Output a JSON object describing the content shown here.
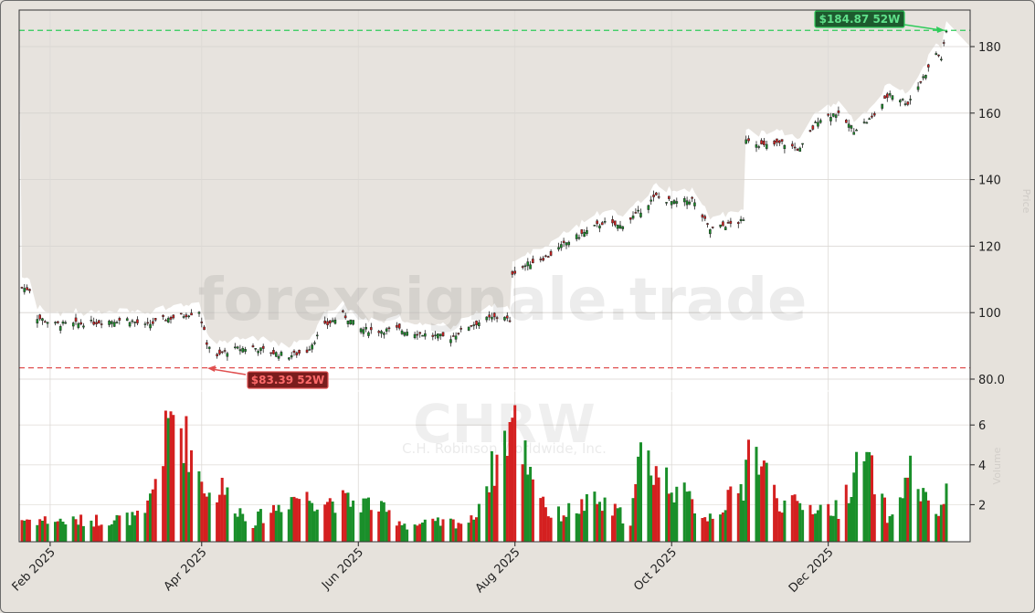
{
  "watermark": {
    "site": "forexsignale.trade",
    "ticker": "CHRW",
    "company": "C.H. Robinson Worldwide, Inc."
  },
  "axes": {
    "price_label": "Price",
    "volume_label": "Volume"
  },
  "annotations": {
    "high_label": "$184.87 52W",
    "low_label": "$83.39 52W"
  },
  "colors": {
    "up": "#1a8f2a",
    "down": "#d42020",
    "high_line": "#2ecc5a",
    "low_line": "#e05050",
    "background": "#e6e2dc",
    "panel": "#ffffff",
    "shade": "#e6e2dc"
  },
  "chart_data": [
    {
      "type": "candlestick",
      "title": "",
      "xlabel": "",
      "ylabel": "Price",
      "ylim": [
        75,
        191
      ],
      "yticks": [
        80,
        100,
        120,
        140,
        160,
        180
      ],
      "ytick_labels": [
        "80.0",
        "100",
        "120",
        "140",
        "160",
        "180"
      ],
      "date_ticks": [
        "Feb 2025",
        "Apr 2025",
        "Jun 2025",
        "Aug 2025",
        "Oct 2025",
        "Dec 2025"
      ],
      "date_range": [
        "2025-01-21",
        "2026-01-16"
      ],
      "grid": true,
      "high_52w": 184.87,
      "low_52w": 83.39,
      "close_path": [
        [
          "2025-01-21",
          107.5
        ],
        [
          "2025-01-24",
          107.0
        ],
        [
          "2025-01-27",
          98.5
        ],
        [
          "2025-02-03",
          96.5
        ],
        [
          "2025-02-10",
          96.5
        ],
        [
          "2025-02-17",
          97.0
        ],
        [
          "2025-02-24",
          97.5
        ],
        [
          "2025-03-03",
          98.0
        ],
        [
          "2025-03-10",
          96.0
        ],
        [
          "2025-03-17",
          98.0
        ],
        [
          "2025-03-24",
          99.0
        ],
        [
          "2025-03-31",
          100.5
        ],
        [
          "2025-04-03",
          91.0
        ],
        [
          "2025-04-07",
          86.5
        ],
        [
          "2025-04-09",
          88.0
        ],
        [
          "2025-04-14",
          89.0
        ],
        [
          "2025-04-21",
          89.5
        ],
        [
          "2025-04-28",
          88.0
        ],
        [
          "2025-05-05",
          87.0
        ],
        [
          "2025-05-12",
          88.5
        ],
        [
          "2025-05-19",
          96.0
        ],
        [
          "2025-05-26",
          99.5
        ],
        [
          "2025-06-02",
          95.0
        ],
        [
          "2025-06-09",
          94.5
        ],
        [
          "2025-06-16",
          95.0
        ],
        [
          "2025-06-23",
          94.0
        ],
        [
          "2025-06-30",
          93.0
        ],
        [
          "2025-07-07",
          92.5
        ],
        [
          "2025-07-14",
          96.0
        ],
        [
          "2025-07-21",
          98.0
        ],
        [
          "2025-07-28",
          99.0
        ],
        [
          "2025-07-30",
          97.0
        ],
        [
          "2025-07-31",
          112.0
        ],
        [
          "2025-08-07",
          115.0
        ],
        [
          "2025-08-14",
          117.0
        ],
        [
          "2025-08-21",
          121.0
        ],
        [
          "2025-08-28",
          124.0
        ],
        [
          "2025-09-04",
          127.0
        ],
        [
          "2025-09-11",
          126.0
        ],
        [
          "2025-09-18",
          130.0
        ],
        [
          "2025-09-25",
          135.0
        ],
        [
          "2025-10-02",
          133.0
        ],
        [
          "2025-10-09",
          134.0
        ],
        [
          "2025-10-16",
          125.0
        ],
        [
          "2025-10-23",
          126.5
        ],
        [
          "2025-10-29",
          127.5
        ],
        [
          "2025-10-30",
          152.5
        ],
        [
          "2025-11-06",
          150.0
        ],
        [
          "2025-11-13",
          151.0
        ],
        [
          "2025-11-20",
          149.0
        ],
        [
          "2025-11-27",
          158.0
        ],
        [
          "2025-12-04",
          160.0
        ],
        [
          "2025-12-11",
          155.0
        ],
        [
          "2025-12-18",
          158.5
        ],
        [
          "2025-12-25",
          166.0
        ],
        [
          "2026-01-01",
          163.0
        ],
        [
          "2026-01-08",
          172.0
        ],
        [
          "2026-01-12",
          178.0
        ],
        [
          "2026-01-14",
          176.5
        ],
        [
          "2026-01-16",
          184.5
        ]
      ]
    },
    {
      "type": "bar",
      "title": "",
      "ylabel": "Volume",
      "ylim": [
        0,
        7.5
      ],
      "yticks": [
        2,
        4,
        6
      ],
      "ytick_labels": [
        "2",
        "4",
        "6"
      ],
      "volume_path": [
        [
          "2025-01-21",
          1.3
        ],
        [
          "2025-02-10",
          1.2
        ],
        [
          "2025-03-10",
          1.4
        ],
        [
          "2025-03-21",
          7.0
        ],
        [
          "2025-04-04",
          2.5
        ],
        [
          "2025-04-09",
          2.9
        ],
        [
          "2025-04-20",
          1.1
        ],
        [
          "2025-05-07",
          2.5
        ],
        [
          "2025-05-12",
          2.4
        ],
        [
          "2025-06-06",
          2.1
        ],
        [
          "2025-06-20",
          1.0
        ],
        [
          "2025-07-15",
          1.2
        ],
        [
          "2025-07-31",
          6.4
        ],
        [
          "2025-08-15",
          1.4
        ],
        [
          "2025-09-01",
          2.2
        ],
        [
          "2025-09-15",
          1.3
        ],
        [
          "2025-09-19",
          4.6
        ],
        [
          "2025-10-15",
          1.4
        ],
        [
          "2025-10-29",
          2.9
        ],
        [
          "2025-10-30",
          5.6
        ],
        [
          "2025-11-13",
          2.1
        ],
        [
          "2025-12-05",
          1.8
        ],
        [
          "2025-12-15",
          4.7
        ],
        [
          "2025-12-25",
          1.2
        ],
        [
          "2026-01-02",
          3.9
        ],
        [
          "2026-01-08",
          2.2
        ],
        [
          "2026-01-14",
          1.6
        ],
        [
          "2026-01-16",
          3.1
        ]
      ]
    }
  ]
}
